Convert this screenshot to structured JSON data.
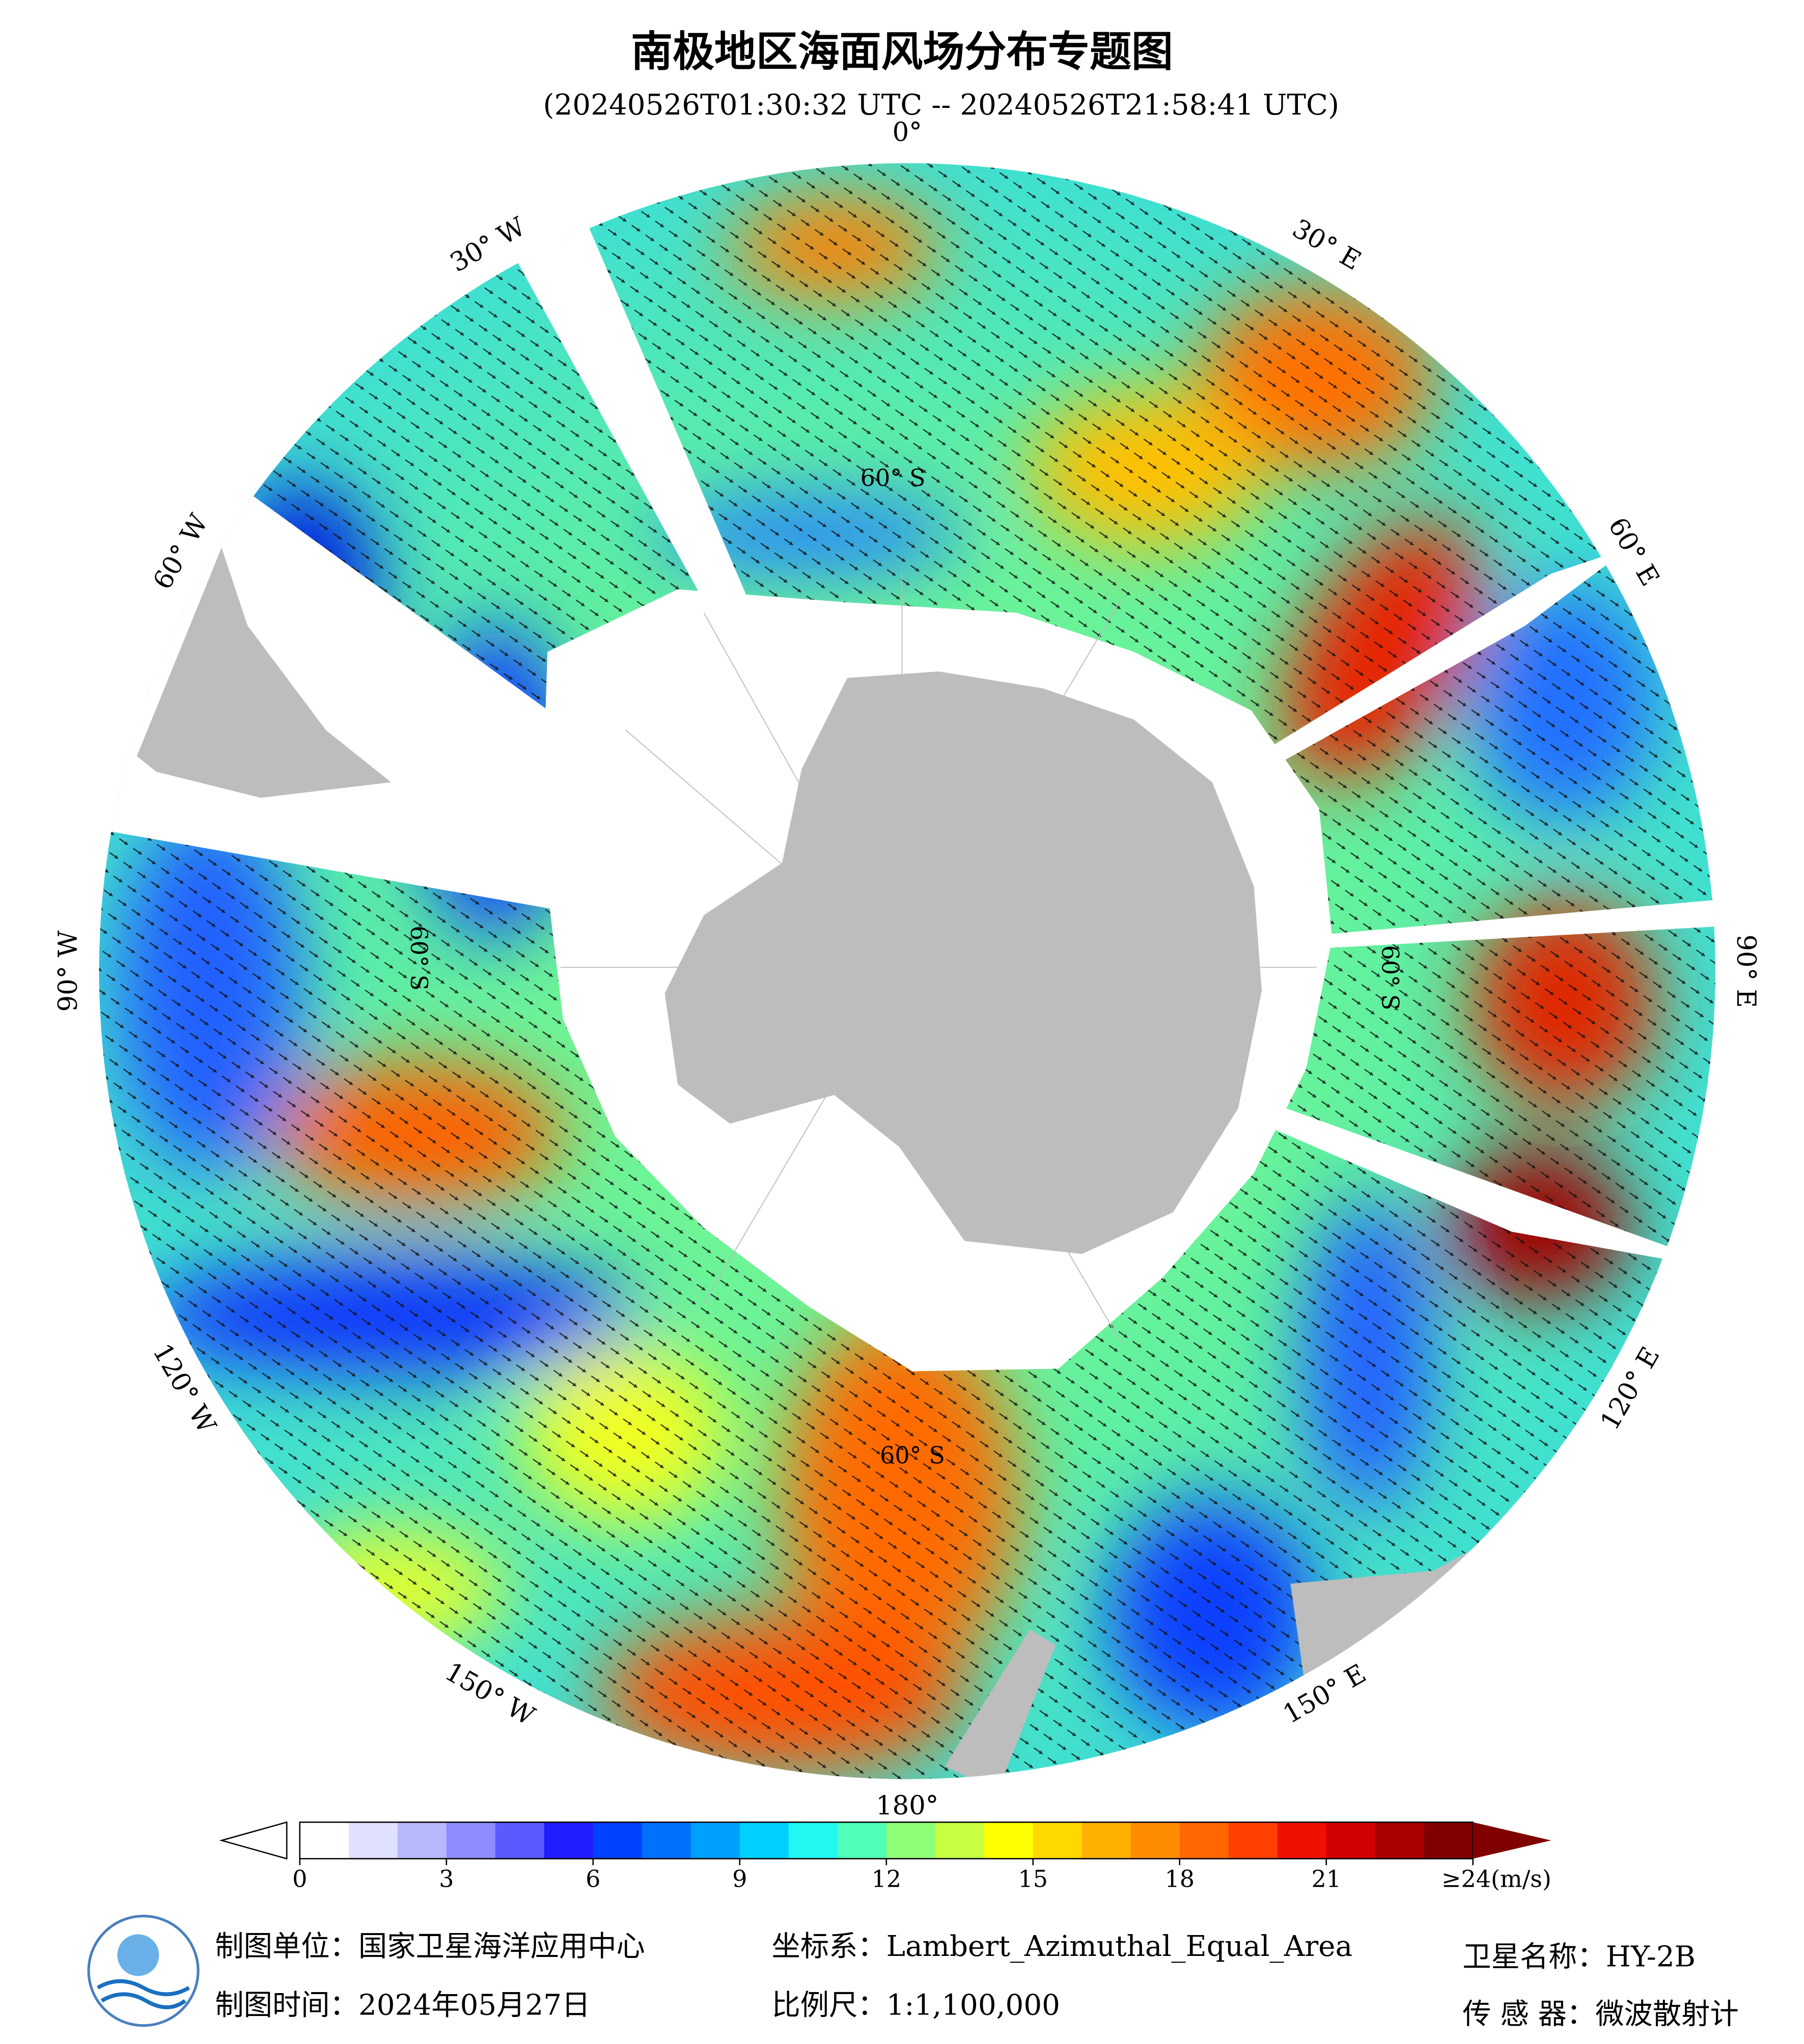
{
  "header": {
    "title": "南极地区海面风场分布专题图",
    "subtitle": "(20240526T01:30:32 UTC -- 20240526T21:58:41 UTC)"
  },
  "map": {
    "longitude_labels": [
      "0°",
      "30° E",
      "60° E",
      "90° E",
      "120° E",
      "150° E",
      "180°",
      "150° W",
      "120° W",
      "90° W",
      "60° W",
      "30° W"
    ],
    "latitude_labels": [
      "60° S",
      "60° S",
      "60° S",
      "60° S"
    ]
  },
  "colorbar": {
    "range": [
      0,
      24
    ],
    "ticks": [
      0,
      3,
      6,
      9,
      12,
      15,
      18,
      21,
      {
        "value": 24,
        "label": "≥24(m/s)"
      }
    ],
    "colors": [
      "#ffffff",
      "#e0e0ff",
      "#b8b8ff",
      "#8c8cff",
      "#5a5aff",
      "#1e1eff",
      "#0040ff",
      "#0070ff",
      "#00a0ff",
      "#00d0ff",
      "#20f8f0",
      "#50ffb8",
      "#90ff78",
      "#c8ff40",
      "#ffff00",
      "#ffd800",
      "#ffb000",
      "#ff8c00",
      "#ff6800",
      "#ff4000",
      "#f01000",
      "#d00000",
      "#a80000",
      "#800000"
    ]
  },
  "footer": {
    "unit": "制图单位：国家卫星海洋应用中心",
    "date": "制图时间：2024年05月27日",
    "crs": "坐标系：Lambert_Azimuthal_Equal_Area",
    "scale": "比例尺：1:1,100,000",
    "satellite": "卫星名称：HY-2B",
    "sensor": "传 感 器：微波散射计"
  }
}
